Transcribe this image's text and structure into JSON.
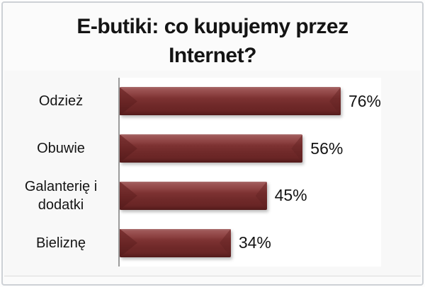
{
  "chart_data": {
    "type": "bar",
    "orientation": "horizontal",
    "title": "E-butiki: co kupujemy przez Internet?",
    "categories": [
      "Odzież",
      "Obuwie",
      "Galanterię i dodatki",
      "Bieliznę"
    ],
    "values": [
      76,
      56,
      45,
      34
    ],
    "value_labels": [
      "76%",
      "56%",
      "45%",
      "34%"
    ],
    "xlabel": "",
    "ylabel": "",
    "xlim": [
      0,
      80
    ],
    "grid": false,
    "legend": false,
    "value_label_position": "outside-end",
    "colors": {
      "bar_base": "#7a2d2d",
      "bar_highlight": "#a06060",
      "bar_dark_edge": "#511a1a",
      "axis_line": "#9b9b9b",
      "text": "#141414",
      "plot_background": "#ffffff",
      "figure_background": "#f8f8f8",
      "frame_border": "#cdd1d6"
    }
  }
}
